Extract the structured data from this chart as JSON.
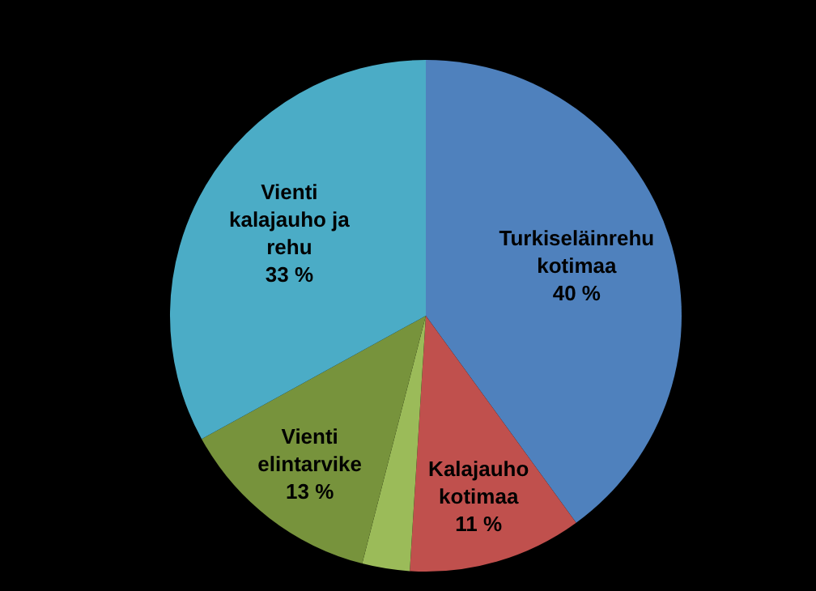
{
  "chart_data": {
    "type": "pie",
    "categories": [
      "Turkiseläinrehu kotimaa",
      "Kalajauho kotimaa",
      null,
      "Vienti elintarvike",
      "Vienti kalajauho ja rehu"
    ],
    "values": [
      40,
      11,
      3,
      13,
      33
    ],
    "colors": [
      "#4f81bd",
      "#c0504d",
      "#9bbb59",
      "#77933c",
      "#4bacc6"
    ],
    "value_labels": [
      "40 %",
      "11 %",
      null,
      "13 %",
      "33 %"
    ],
    "legend": false
  }
}
